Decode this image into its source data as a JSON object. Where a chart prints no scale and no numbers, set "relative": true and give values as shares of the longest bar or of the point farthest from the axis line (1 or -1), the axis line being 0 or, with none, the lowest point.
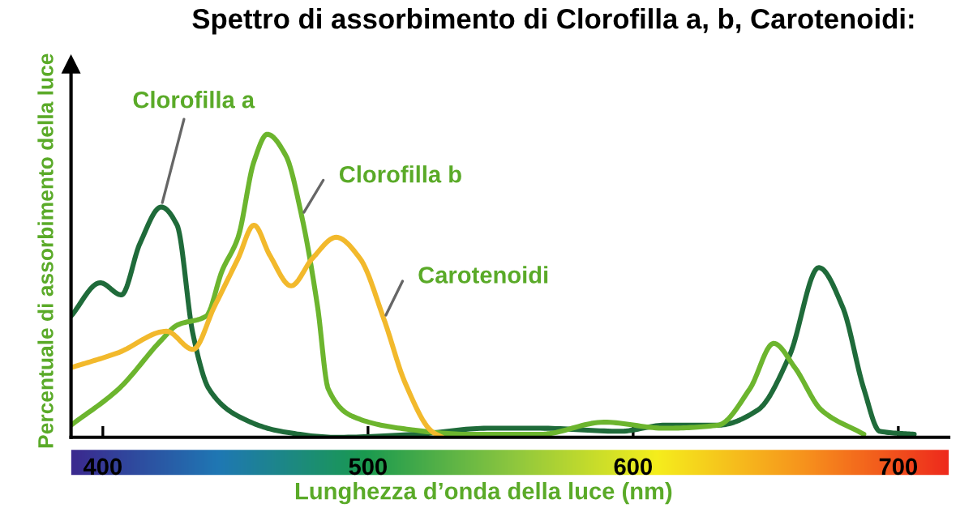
{
  "chart_data": {
    "type": "line",
    "title": "Spettro di assorbimento di Clorofilla a, b, Carotenoidi:",
    "xlabel": "Lunghezza d’onda della luce (nm)",
    "ylabel": "Percentuale di assorbimento della luce",
    "relative": true,
    "xlim": [
      388,
      719
    ],
    "xticks": [
      400,
      500,
      600,
      700
    ],
    "grid": false,
    "legend": false,
    "marker": "none",
    "line_style": "solid",
    "series": [
      {
        "name": "Clorofilla a",
        "color": "#1f6b3a",
        "x": [
          388,
          399,
          407,
          414,
          422,
          428,
          434,
          440,
          451,
          467,
          488,
          518,
          545,
          565,
          595,
          612,
          632,
          647,
          659,
          670,
          679,
          687,
          693,
          706
        ],
        "values": [
          0.4,
          0.51,
          0.47,
          0.64,
          0.76,
          0.7,
          0.34,
          0.16,
          0.07,
          0.02,
          0.0,
          0.01,
          0.03,
          0.03,
          0.02,
          0.04,
          0.04,
          0.09,
          0.27,
          0.56,
          0.43,
          0.16,
          0.02,
          0.01
        ]
      },
      {
        "name": "Clorofilla b",
        "color": "#6cb52e",
        "x": [
          388,
          406,
          422,
          428,
          439,
          445,
          451,
          457,
          462,
          469,
          475,
          481,
          485,
          494,
          512,
          538,
          565,
          589,
          612,
          632,
          644,
          653,
          661,
          671,
          687
        ],
        "values": [
          0.04,
          0.16,
          0.32,
          0.37,
          0.4,
          0.55,
          0.66,
          0.91,
          1.0,
          0.93,
          0.73,
          0.43,
          0.16,
          0.07,
          0.03,
          0.01,
          0.01,
          0.05,
          0.03,
          0.04,
          0.16,
          0.31,
          0.23,
          0.09,
          0.01
        ]
      },
      {
        "name": "Carotenoidi",
        "color": "#f2b92c",
        "x": [
          388,
          406,
          424,
          434,
          442,
          451,
          457,
          463,
          471,
          479,
          488,
          497,
          506,
          514,
          524,
          528
        ],
        "values": [
          0.23,
          0.28,
          0.35,
          0.29,
          0.43,
          0.59,
          0.7,
          0.6,
          0.5,
          0.59,
          0.66,
          0.59,
          0.39,
          0.18,
          0.02,
          0.0
        ]
      }
    ]
  }
}
